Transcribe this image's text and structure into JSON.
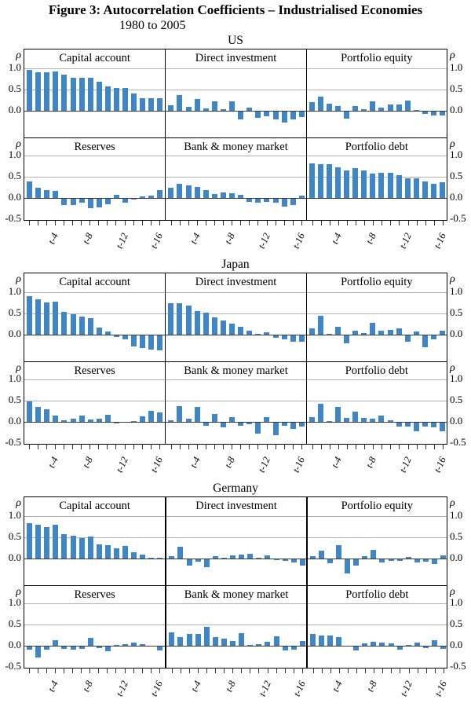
{
  "title": "Figure 3: Autocorrelation Coefficients – Industrialised Economies",
  "subtitle": "1980 to 2005",
  "axis": {
    "rho_symbol": "ρ",
    "y_ticks_top_row": [
      "1.0",
      "0.5",
      "0.0"
    ],
    "y_ticks_bottom_row": [
      "1.0",
      "0.5",
      "0.0",
      "-0.5"
    ],
    "x_tick_labels": [
      "t-4",
      "t-8",
      "t-12",
      "t-16"
    ],
    "lags_per_panel": 16
  },
  "colors": {
    "bar": "#3e86c5",
    "grid": "#b3b3b3",
    "baseline": "#3a3a3a",
    "frame": "#000000",
    "tick": "#333333"
  },
  "chart_data": [
    {
      "type": "bar",
      "country": "US",
      "ylim_top_row": [
        -0.6,
        1.45
      ],
      "ylim_bottom_row": [
        -0.5,
        1.45
      ],
      "panels": [
        {
          "title": "Capital account",
          "row": 0,
          "values": [
            0.97,
            0.91,
            0.91,
            0.93,
            0.86,
            0.78,
            0.78,
            0.78,
            0.68,
            0.57,
            0.54,
            0.54,
            0.4,
            0.29,
            0.29,
            0.3
          ]
        },
        {
          "title": "Direct investment",
          "row": 0,
          "values": [
            0.13,
            0.37,
            0.1,
            0.27,
            0.05,
            0.23,
            0.04,
            0.22,
            -0.18,
            0.07,
            -0.15,
            -0.11,
            -0.19,
            -0.25,
            -0.19,
            -0.13
          ]
        },
        {
          "title": "Portfolio equity",
          "row": 0,
          "values": [
            0.2,
            0.33,
            0.16,
            0.11,
            -0.16,
            0.11,
            0.03,
            0.22,
            0.08,
            0.15,
            0.15,
            0.25,
            0.02,
            -0.06,
            -0.09,
            -0.09
          ]
        },
        {
          "title": "Reserves",
          "row": 1,
          "values": [
            0.38,
            0.24,
            0.19,
            0.16,
            -0.15,
            -0.14,
            -0.09,
            -0.22,
            -0.2,
            -0.13,
            0.08,
            -0.09,
            -0.02,
            0.04,
            0.05,
            0.18
          ]
        },
        {
          "title": "Bank & money market",
          "row": 1,
          "values": [
            0.24,
            0.33,
            0.3,
            0.26,
            0.19,
            0.1,
            0.13,
            0.11,
            0.07,
            -0.08,
            -0.1,
            -0.08,
            -0.1,
            -0.19,
            -0.14,
            0.06
          ]
        },
        {
          "title": "Portfolio debt",
          "row": 1,
          "values": [
            0.82,
            0.79,
            0.79,
            0.73,
            0.65,
            0.7,
            0.64,
            0.57,
            0.6,
            0.6,
            0.53,
            0.46,
            0.46,
            0.38,
            0.33,
            0.37
          ]
        }
      ]
    },
    {
      "type": "bar",
      "country": "Japan",
      "ylim_top_row": [
        -0.6,
        1.45
      ],
      "ylim_bottom_row": [
        -0.5,
        1.45
      ],
      "panels": [
        {
          "title": "Capital account",
          "row": 0,
          "values": [
            0.9,
            0.83,
            0.76,
            0.78,
            0.54,
            0.49,
            0.42,
            0.38,
            0.17,
            0.07,
            -0.03,
            -0.09,
            -0.25,
            -0.3,
            -0.34,
            -0.36
          ]
        },
        {
          "title": "Direct investment",
          "row": 0,
          "values": [
            0.75,
            0.75,
            0.69,
            0.55,
            0.51,
            0.4,
            0.33,
            0.26,
            0.18,
            0.1,
            0.02,
            0.05,
            -0.06,
            -0.1,
            -0.14,
            -0.15
          ]
        },
        {
          "title": "Portfolio equity",
          "row": 0,
          "values": [
            0.15,
            0.45,
            0.01,
            0.18,
            -0.18,
            0.1,
            0.03,
            0.28,
            0.1,
            0.12,
            0.15,
            -0.15,
            0.08,
            -0.28,
            -0.1,
            0.1
          ]
        },
        {
          "title": "Reserves",
          "row": 1,
          "values": [
            0.49,
            0.36,
            0.29,
            0.14,
            0.04,
            0.07,
            0.14,
            0.06,
            0.07,
            0.17,
            -0.02,
            0.0,
            0.02,
            0.13,
            0.26,
            0.22
          ]
        },
        {
          "title": "Bank & money market",
          "row": 1,
          "values": [
            0.04,
            0.37,
            0.08,
            0.35,
            -0.07,
            0.18,
            -0.12,
            0.12,
            -0.08,
            -0.03,
            -0.25,
            0.12,
            -0.3,
            -0.08,
            -0.15,
            -0.1
          ]
        },
        {
          "title": "Portfolio debt",
          "row": 1,
          "values": [
            0.12,
            0.42,
            0.01,
            0.36,
            0.1,
            0.25,
            0.1,
            0.07,
            0.15,
            0.03,
            -0.1,
            -0.1,
            -0.2,
            -0.1,
            -0.12,
            -0.2
          ]
        }
      ]
    },
    {
      "type": "bar",
      "country": "Germany",
      "ylim_top_row": [
        -0.6,
        1.45
      ],
      "ylim_bottom_row": [
        -0.5,
        1.45
      ],
      "panels": [
        {
          "title": "Capital account",
          "row": 0,
          "values": [
            0.83,
            0.8,
            0.74,
            0.8,
            0.58,
            0.54,
            0.48,
            0.51,
            0.34,
            0.31,
            0.25,
            0.3,
            0.14,
            0.09,
            0.01,
            0.02
          ]
        },
        {
          "title": "Direct investment",
          "row": 0,
          "values": [
            0.05,
            0.27,
            -0.15,
            -0.05,
            -0.18,
            0.06,
            0.01,
            0.07,
            0.09,
            0.12,
            0.02,
            0.07,
            -0.02,
            -0.03,
            -0.08,
            -0.15
          ]
        },
        {
          "title": "Portfolio equity",
          "row": 0,
          "values": [
            0.05,
            0.18,
            -0.1,
            0.32,
            -0.33,
            -0.15,
            0.05,
            0.2,
            -0.08,
            -0.03,
            -0.04,
            0.04,
            -0.07,
            -0.06,
            -0.12,
            0.07
          ]
        },
        {
          "title": "Reserves",
          "row": 1,
          "values": [
            -0.07,
            -0.25,
            -0.08,
            0.13,
            -0.05,
            -0.08,
            -0.05,
            0.18,
            -0.04,
            -0.11,
            0.02,
            0.03,
            0.07,
            0.03,
            0.0,
            -0.1
          ]
        },
        {
          "title": "Bank & money market",
          "row": 1,
          "values": [
            0.32,
            0.21,
            0.28,
            0.27,
            0.45,
            0.2,
            0.16,
            0.11,
            0.3,
            0.02,
            0.03,
            0.1,
            0.22,
            -0.1,
            -0.08,
            0.12
          ]
        },
        {
          "title": "Portfolio debt",
          "row": 1,
          "values": [
            0.28,
            0.25,
            0.25,
            0.2,
            0.0,
            -0.1,
            0.05,
            0.09,
            0.08,
            0.06,
            -0.08,
            0.02,
            0.08,
            -0.03,
            0.13,
            -0.05
          ]
        }
      ]
    }
  ]
}
